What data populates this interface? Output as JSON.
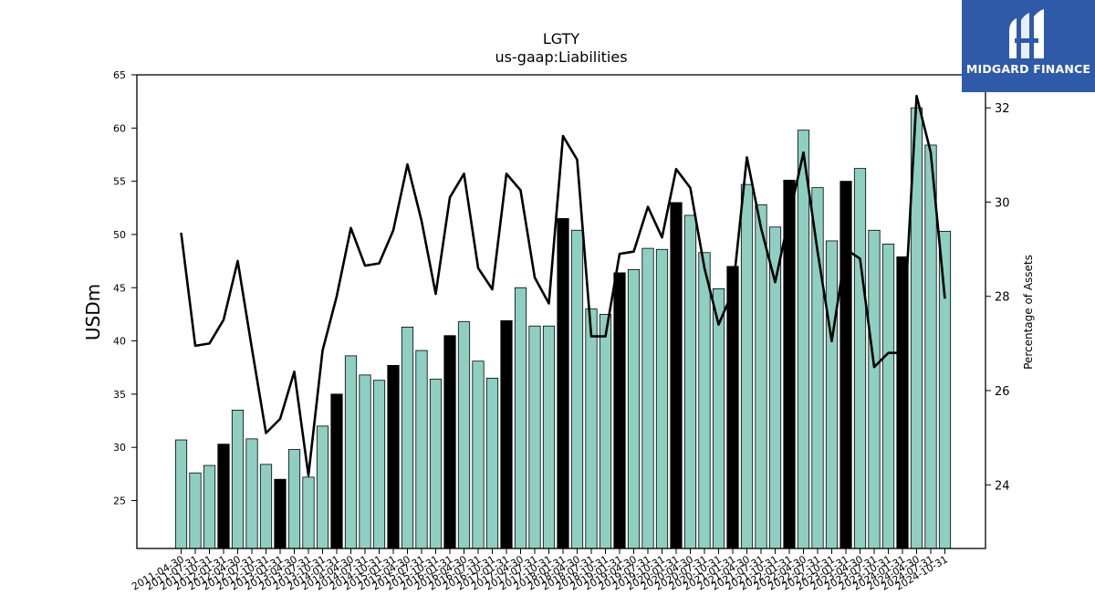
{
  "brand": {
    "name": "MIDGARD FINANCE",
    "bg_color": "#2f5aa8"
  },
  "chart_data": {
    "type": "bar",
    "title": "LGTY",
    "subtitle": "us-gaap:Liabilities",
    "ylabel": "USDm",
    "y2label": "Percentage of Assets",
    "ylim": [
      20.5,
      65
    ],
    "y2lim": [
      22.65,
      32.7
    ],
    "yticks": [
      25,
      30,
      35,
      40,
      45,
      50,
      55,
      60,
      65
    ],
    "y2ticks": [
      24,
      26,
      28,
      30,
      32
    ],
    "grid": false,
    "bar_color": "#8ecfc2",
    "highlight_color": "#000000",
    "line_color": "#000000",
    "categories": [
      "2011-04-30",
      "2011-07-31",
      "2011-10-31",
      "2012-01-31",
      "2012-04-30",
      "2012-07-31",
      "2012-10-31",
      "2013-01-31",
      "2013-04-30",
      "2013-07-31",
      "2013-10-31",
      "2014-01-31",
      "2014-04-30",
      "2014-07-31",
      "2014-10-31",
      "2015-01-31",
      "2015-04-30",
      "2015-07-31",
      "2015-10-31",
      "2016-01-31",
      "2016-04-30",
      "2016-07-31",
      "2016-10-31",
      "2017-01-31",
      "2017-04-30",
      "2017-07-31",
      "2017-10-31",
      "2018-01-31",
      "2018-04-30",
      "2018-07-31",
      "2018-10-31",
      "2019-01-31",
      "2019-04-30",
      "2019-07-31",
      "2019-10-31",
      "2020-01-31",
      "2020-04-30",
      "2020-07-31",
      "2020-10-31",
      "2021-01-31",
      "2021-04-30",
      "2021-07-31",
      "2021-10-31",
      "2022-01-31",
      "2022-04-30",
      "2022-07-31",
      "2022-10-31",
      "2023-01-31",
      "2023-04-30",
      "2023-07-31",
      "2023-10-31",
      "2024-01-31",
      "2024-04-30",
      "2024-07-31",
      "2024-10-31"
    ],
    "series": [
      {
        "name": "Liabilities",
        "values": [
          30.7,
          27.6,
          28.3,
          30.3,
          33.5,
          30.8,
          28.4,
          27.0,
          29.8,
          27.2,
          32.0,
          35.0,
          38.6,
          36.8,
          36.3,
          37.7,
          41.3,
          39.1,
          36.4,
          40.5,
          41.8,
          38.1,
          36.5,
          41.9,
          45.0,
          41.4,
          41.4,
          51.5,
          50.4,
          43.0,
          42.5,
          46.4,
          46.7,
          48.7,
          48.6,
          53.0,
          51.8,
          48.3,
          44.9,
          47.0,
          54.7,
          52.8,
          50.7,
          55.1,
          59.8,
          54.4,
          49.4,
          55.0,
          56.2,
          50.4,
          49.1,
          47.9,
          61.9,
          58.4,
          50.3
        ],
        "highlighted": [
          false,
          false,
          false,
          true,
          false,
          false,
          false,
          true,
          false,
          false,
          false,
          true,
          false,
          false,
          false,
          true,
          false,
          false,
          false,
          true,
          false,
          false,
          false,
          true,
          false,
          false,
          false,
          true,
          false,
          false,
          false,
          true,
          false,
          false,
          false,
          true,
          false,
          false,
          false,
          true,
          false,
          false,
          false,
          true,
          false,
          false,
          false,
          true,
          false,
          false,
          false,
          true,
          false,
          false,
          false
        ]
      },
      {
        "name": "Percentage of Assets",
        "axis": "right",
        "values": [
          29.35,
          26.95,
          27.0,
          27.5,
          28.75,
          26.9,
          25.1,
          25.4,
          26.4,
          24.2,
          26.85,
          28.0,
          29.45,
          28.65,
          28.7,
          29.4,
          30.8,
          29.6,
          28.05,
          30.1,
          30.6,
          28.6,
          28.15,
          30.6,
          30.25,
          28.4,
          27.85,
          31.4,
          30.9,
          27.15,
          27.15,
          28.9,
          28.95,
          29.9,
          29.25,
          30.7,
          30.3,
          28.6,
          27.4,
          28.1,
          30.95,
          29.45,
          28.3,
          29.7,
          31.05,
          28.95,
          27.05,
          29.0,
          28.8,
          26.5,
          26.8,
          26.8,
          32.25,
          31.05,
          27.95
        ]
      }
    ]
  }
}
